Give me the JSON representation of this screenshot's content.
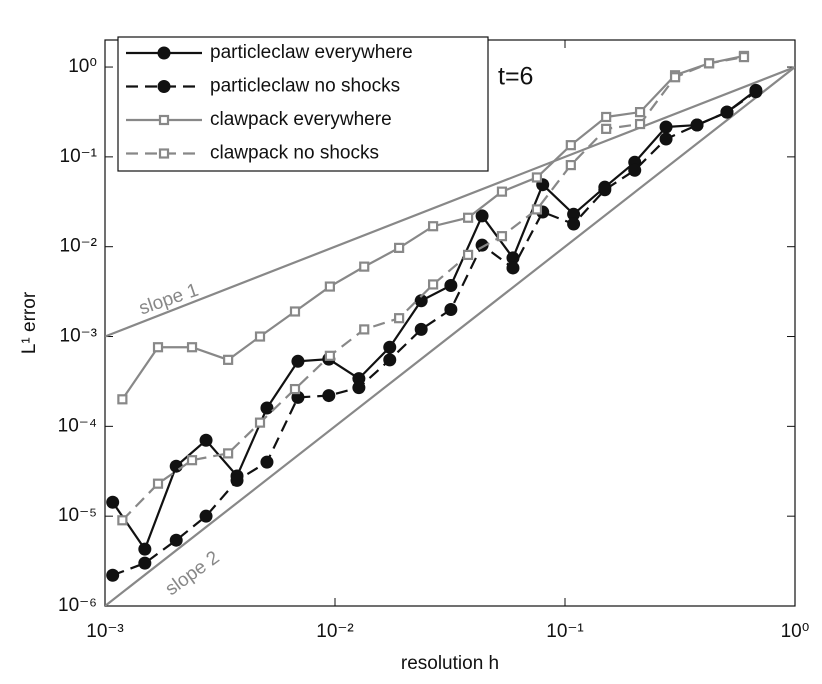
{
  "chart_data": {
    "type": "line",
    "x_label": "resolution h",
    "y_label": "L¹ error",
    "annotations": [
      "t=6"
    ],
    "xscale": "log",
    "yscale": "log",
    "xlim": [
      0.001,
      1
    ],
    "ylim": [
      1e-06,
      2
    ],
    "xticks": [
      {
        "value": 0.001,
        "label": "10⁻³"
      },
      {
        "value": 0.01,
        "label": "10⁻²"
      },
      {
        "value": 0.1,
        "label": "10⁻¹"
      },
      {
        "value": 1,
        "label": "10⁰"
      }
    ],
    "yticks": [
      {
        "value": 1e-06,
        "label": "10⁻⁶"
      },
      {
        "value": 1e-05,
        "label": "10⁻⁵"
      },
      {
        "value": 0.0001,
        "label": "10⁻⁴"
      },
      {
        "value": 0.001,
        "label": "10⁻³"
      },
      {
        "value": 0.01,
        "label": "10⁻²"
      },
      {
        "value": 0.1,
        "label": "10⁻¹"
      },
      {
        "value": 1,
        "label": "10⁰"
      }
    ],
    "legend": "upper left",
    "series": [
      {
        "name": "particleclaw everywhere",
        "color": "#111111",
        "dash": "solid",
        "marker": "circle",
        "x": [
          0.00108,
          0.00149,
          0.00204,
          0.00275,
          0.00375,
          0.00506,
          0.0069,
          0.0094,
          0.0127,
          0.0173,
          0.0237,
          0.0319,
          0.0436,
          0.0594,
          0.08,
          0.109,
          0.149,
          0.201,
          0.275,
          0.375,
          0.506,
          0.676
        ],
        "values": [
          1.43e-05,
          4.3e-06,
          3.6e-05,
          7e-05,
          2.8e-05,
          0.00016,
          0.00053,
          0.00056,
          0.00034,
          0.00076,
          0.0025,
          0.0037,
          0.022,
          0.0075,
          0.049,
          0.023,
          0.046,
          0.087,
          0.215,
          0.226,
          0.315,
          0.55
        ]
      },
      {
        "name": "particleclaw no shocks",
        "color": "#111111",
        "dash": "dashed",
        "marker": "circle",
        "x": [
          0.00108,
          0.00149,
          0.00204,
          0.00275,
          0.00375,
          0.00506,
          0.0069,
          0.0094,
          0.0127,
          0.0173,
          0.0237,
          0.0319,
          0.0436,
          0.0594,
          0.08,
          0.109,
          0.149,
          0.201,
          0.275,
          0.375,
          0.506,
          0.676
        ],
        "values": [
          2.2e-06,
          3e-06,
          5.4e-06,
          1e-05,
          2.5e-05,
          4e-05,
          0.00021,
          0.00022,
          0.00027,
          0.00055,
          0.0012,
          0.002,
          0.0104,
          0.0058,
          0.0243,
          0.0179,
          0.043,
          0.071,
          0.158,
          0.226,
          0.315,
          0.53
        ]
      },
      {
        "name": "clawpack everywhere",
        "color": "#888888",
        "dash": "solid",
        "marker": "square",
        "x": [
          0.00119,
          0.0017,
          0.00239,
          0.00343,
          0.00472,
          0.0067,
          0.0095,
          0.0134,
          0.019,
          0.0267,
          0.0379,
          0.0532,
          0.0755,
          0.106,
          0.151,
          0.212,
          0.301,
          0.423,
          0.6
        ],
        "values": [
          0.0002,
          0.00076,
          0.00076,
          0.00055,
          0.001,
          0.0019,
          0.0036,
          0.006,
          0.0097,
          0.0169,
          0.021,
          0.041,
          0.059,
          0.135,
          0.278,
          0.315,
          0.81,
          1.1,
          1.33
        ]
      },
      {
        "name": "clawpack no shocks",
        "color": "#888888",
        "dash": "dashed",
        "marker": "square",
        "x": [
          0.00119,
          0.0017,
          0.00239,
          0.00343,
          0.00472,
          0.0067,
          0.0095,
          0.0134,
          0.019,
          0.0267,
          0.0379,
          0.0532,
          0.0755,
          0.106,
          0.151,
          0.212,
          0.301,
          0.423,
          0.6
        ],
        "values": [
          9e-06,
          2.3e-05,
          4.2e-05,
          5e-05,
          0.00011,
          0.00026,
          0.00061,
          0.0012,
          0.0016,
          0.0038,
          0.0081,
          0.0131,
          0.026,
          0.081,
          0.205,
          0.232,
          0.77,
          1.1,
          1.29
        ]
      }
    ],
    "reference_lines": [
      {
        "label": "slope 1",
        "color": "#888888",
        "x": [
          0.001,
          1
        ],
        "y": [
          0.001,
          1
        ]
      },
      {
        "label": "slope 2",
        "color": "#888888",
        "x": [
          0.001,
          1
        ],
        "y": [
          1e-06,
          1
        ]
      }
    ]
  }
}
